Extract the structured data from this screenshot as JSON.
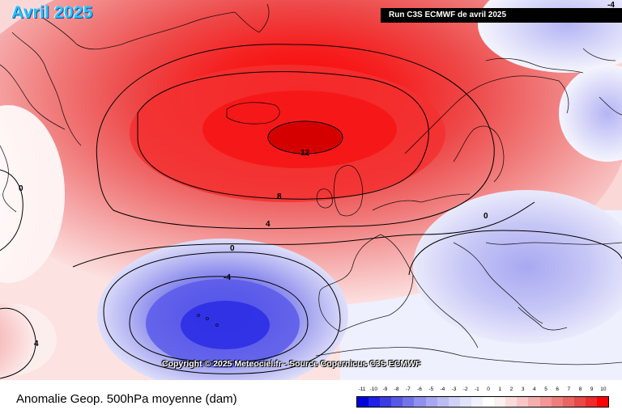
{
  "title": "Avril 2025",
  "run_info": "Run C3S ECMWF de avril 2025",
  "copyright": "Copyright © 2025 Meteociel.fr - Source Copernicus C3S ECMWF",
  "caption": "Anomalie Geop. 500hPa moyenne (dam)",
  "contour_labels": {
    "c12": "12",
    "c8": "8",
    "c4": "4",
    "c0a": "0",
    "c0b": "0",
    "c0c": "0",
    "cm4a": "-4",
    "c4b": "4",
    "cm4b": "-4"
  },
  "legend": {
    "labels": [
      "-11",
      "-10",
      "-9",
      "-8",
      "-7",
      "-6",
      "-5",
      "-4",
      "-3",
      "-2",
      "-1",
      "0",
      "1",
      "2",
      "3",
      "4",
      "5",
      "6",
      "7",
      "8",
      "9",
      "10"
    ],
    "colors": [
      "#0000d8",
      "#2020e8",
      "#3c3ce0",
      "#5858e6",
      "#7474ea",
      "#9090ee",
      "#a8a8f2",
      "#bcbcf4",
      "#d0d0f8",
      "#e2e2fb",
      "#f1f1fd",
      "#ffffff",
      "#fdf0f0",
      "#fbdcdc",
      "#f8c6c6",
      "#f5aeae",
      "#f29696",
      "#ee7e7e",
      "#ea6464",
      "#e84848",
      "#ee2a2a",
      "#ff0000"
    ]
  }
}
